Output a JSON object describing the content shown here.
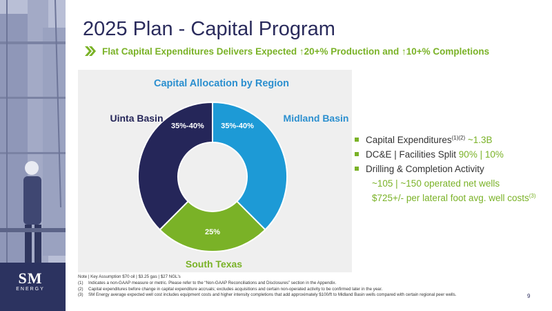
{
  "slide": {
    "title": "2025 Plan - Capital Program",
    "subtitle": "Flat Capital Expenditures Delivers Expected ↑20+% Production and ↑10+% Completions",
    "page_number": "9"
  },
  "logo": {
    "main": "SM",
    "sub": "ENERGY"
  },
  "chart_data": {
    "type": "pie",
    "title": "Capital Allocation by Region",
    "categories": [
      "Midland Basin",
      "South Texas",
      "Uinta Basin"
    ],
    "values": [
      37.5,
      25,
      37.5
    ],
    "data_labels": [
      "35%-40%",
      "25%",
      "35%-40%"
    ],
    "colors": [
      "#1d9ad6",
      "#7ab227",
      "#252659"
    ],
    "donut": true
  },
  "bullets": [
    {
      "label": "Capital Expenditures",
      "sup": "(1)(2)",
      "value": " ~1.3B"
    },
    {
      "label": "DC&E | Facilities Split ",
      "value": "90% | 10%"
    },
    {
      "label": "Drilling & Completion Activity"
    }
  ],
  "sub_bullets": [
    {
      "text": "~105 | ~150 operated net wells"
    },
    {
      "text": "$725+/- per lateral foot avg. well costs",
      "sup": "(3)"
    }
  ],
  "notes": {
    "header": "Note | Key Assumption $70 oil | $3.25 gas | $27 NGL's",
    "items": [
      {
        "num": "(1)",
        "text": "Indicates a non-GAAP measure or metric. Please refer to the “Non-GAAP Reconciliations and Disclosures” section in the Appendix."
      },
      {
        "num": "(2)",
        "text": "Capital expenditures before change in capital expenditure accruals; excludes acquisitions and certain non-operated activity to be confirmed later in the year."
      },
      {
        "num": "(3)",
        "text": "SM Energy average expected well cost includes equipment costs and higher intensity completions that add approximately $100/ft to Midland Basin wells compared with certain regional peer wells."
      }
    ]
  }
}
